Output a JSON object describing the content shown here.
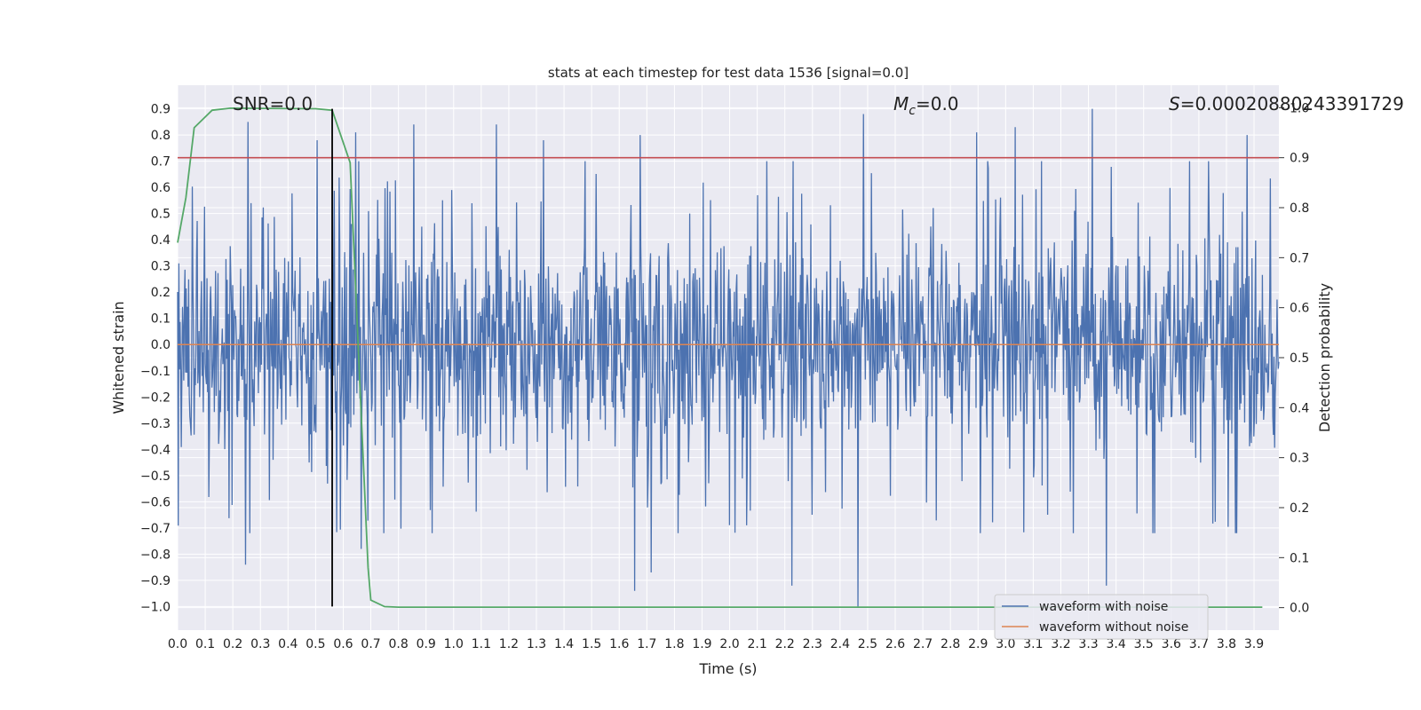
{
  "chart_data": {
    "type": "line",
    "title": "stats at each timestep for test data 1536 [signal=0.0]",
    "xlabel": "Time (s)",
    "ylabel": "Whitened strain",
    "y2label": "Detection probability",
    "xlim": [
      0.0,
      3.99
    ],
    "ylim": [
      -1.09,
      0.99
    ],
    "y2lim": [
      -0.045,
      1.045
    ],
    "xticks": [
      0.0,
      0.1,
      0.2,
      0.3,
      0.4,
      0.5,
      0.6,
      0.7,
      0.8,
      0.9,
      1.0,
      1.1,
      1.2,
      1.3,
      1.4,
      1.5,
      1.6,
      1.7,
      1.8,
      1.9,
      2.0,
      2.1,
      2.2,
      2.3,
      2.4,
      2.5,
      2.6,
      2.7,
      2.8,
      2.9,
      3.0,
      3.1,
      3.2,
      3.3,
      3.4,
      3.5,
      3.6,
      3.7,
      3.8,
      3.9
    ],
    "yticks": [
      0.9,
      0.8,
      0.7,
      0.6,
      0.5,
      0.4,
      0.3,
      0.2,
      0.1,
      0.0,
      -0.1,
      -0.2,
      -0.3,
      -0.4,
      -0.5,
      -0.6,
      -0.7,
      -0.8,
      -0.9,
      -1.0
    ],
    "y2ticks": [
      1.0,
      0.9,
      0.8,
      0.7,
      0.6,
      0.5,
      0.4,
      0.3,
      0.2,
      0.1,
      0.0
    ],
    "grid": true,
    "legend": "bottom-right",
    "annotations": {
      "snr": "SNR=0.0",
      "mc": "M_c=0.0",
      "mc_base": "M",
      "mc_sub": "c",
      "mc_rest": "=0.0",
      "s_sym": "S",
      "s_rest": "=0.00020880243391729",
      "s": "S=0.00020880243391729"
    },
    "series": [
      {
        "name": "waveform with noise",
        "color": "#4c72b0",
        "axis": "left",
        "kind": "noise",
        "t_range": [
          0.0,
          3.99
        ],
        "amplitude_range": [
          -1.0,
          0.9
        ],
        "peaks": [
          [
            0.255,
            0.85
          ],
          [
            0.505,
            0.78
          ],
          [
            0.645,
            0.81
          ],
          [
            0.855,
            0.84
          ],
          [
            1.155,
            0.84
          ],
          [
            1.325,
            0.78
          ],
          [
            1.675,
            0.8
          ],
          [
            2.485,
            0.88
          ],
          [
            2.895,
            0.81
          ],
          [
            3.035,
            0.83
          ],
          [
            3.315,
            0.9
          ],
          [
            3.875,
            0.8
          ]
        ],
        "troughs": [
          [
            0.245,
            -0.84
          ],
          [
            0.665,
            -0.78
          ],
          [
            1.655,
            -0.94
          ],
          [
            1.715,
            -0.87
          ],
          [
            2.225,
            -0.92
          ],
          [
            2.465,
            -1.0
          ],
          [
            3.365,
            -0.92
          ]
        ]
      },
      {
        "name": "waveform without noise",
        "color": "#dd8452",
        "axis": "left",
        "x": [
          0.0,
          3.99
        ],
        "y": [
          0.0,
          0.0
        ]
      },
      {
        "color": "#55a868",
        "axis": "right",
        "x": [
          0.0,
          0.03,
          0.06,
          0.125,
          0.19,
          0.5,
          0.56,
          0.625,
          0.66,
          0.69,
          0.7,
          0.75,
          0.8,
          1.0,
          2.0,
          3.0,
          3.93
        ],
        "y": [
          0.73,
          0.82,
          0.96,
          0.995,
          0.999,
          0.998,
          0.995,
          0.89,
          0.45,
          0.08,
          0.015,
          0.002,
          0.001,
          0.001,
          0.001,
          0.001,
          0.001
        ]
      }
    ],
    "reference_lines": [
      {
        "orientation": "horizontal",
        "axis": "right",
        "value": 0.9,
        "color": "#c44e52"
      },
      {
        "orientation": "vertical",
        "axis": "left",
        "value": 0.56,
        "from": -1.0,
        "to": 0.9,
        "color": "#000000"
      }
    ],
    "colors": {
      "plot_background": "#eaeaf2",
      "grid": "#ffffff",
      "text": "#222222"
    }
  }
}
